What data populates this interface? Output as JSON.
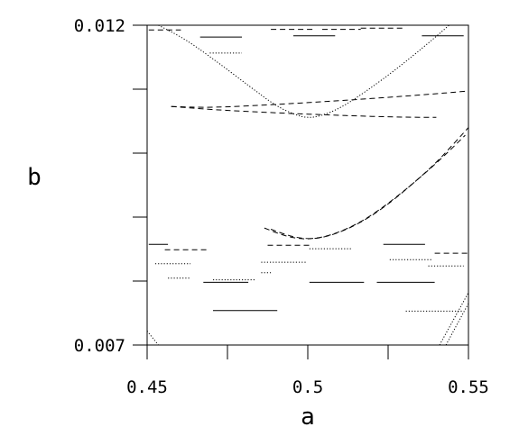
{
  "chart_data": {
    "type": "scatter",
    "title": "",
    "xlabel": "a",
    "ylabel": "b",
    "xlim": [
      0.45,
      0.55
    ],
    "ylim": [
      0.007,
      0.012
    ],
    "x_tick_labels": [
      "0.45",
      "0.5",
      "0.55"
    ],
    "y_tick_labels": [
      "0.007",
      "0.012"
    ],
    "x_minor_ticks": [
      0.475,
      0.525
    ],
    "y_minor_ticks": [
      0.008,
      0.009,
      0.01,
      0.011
    ],
    "grid": false,
    "legend": "none",
    "line_color": "#000000",
    "curves": [
      {
        "name": "",
        "style": "dotted",
        "x": [
          0.4535,
          0.462,
          0.472,
          0.482,
          0.49,
          0.496,
          0.5,
          0.504,
          0.51,
          0.518,
          0.528,
          0.538,
          0.544
        ],
        "y": [
          0.012,
          0.01178,
          0.01142,
          0.01104,
          0.01074,
          0.0106,
          0.01055,
          0.01058,
          0.0107,
          0.01096,
          0.01133,
          0.01174,
          0.012
        ]
      },
      {
        "name": "",
        "style": "dashed",
        "x": [
          0.4865,
          0.492,
          0.497,
          0.502,
          0.508,
          0.515,
          0.522,
          0.53,
          0.538,
          0.545,
          0.549
        ],
        "y": [
          0.00883,
          0.00872,
          0.00866,
          0.00866,
          0.00873,
          0.00888,
          0.0091,
          0.00941,
          0.00975,
          0.01008,
          0.01028
        ]
      },
      {
        "name": "",
        "style": "dashed",
        "x": [
          0.4885,
          0.494,
          0.499,
          0.504,
          0.51,
          0.517,
          0.524,
          0.532,
          0.54,
          0.546,
          0.55
        ],
        "y": [
          0.00881,
          0.00871,
          0.00866,
          0.00867,
          0.00876,
          0.00893,
          0.00916,
          0.00949,
          0.00985,
          0.01018,
          0.0104
        ]
      },
      {
        "name": "",
        "style": "dashed",
        "x": [
          0.4575,
          0.47,
          0.49,
          0.51,
          0.53,
          0.54,
          0.545,
          0.55
        ],
        "y": [
          0.01073,
          0.01071,
          0.01076,
          0.01082,
          0.01089,
          0.01093,
          0.01095,
          0.01097
        ]
      },
      {
        "name": "",
        "style": "dashed",
        "x": [
          0.4575,
          0.47,
          0.49,
          0.51,
          0.53,
          0.54
        ],
        "y": [
          0.01073,
          0.01068,
          0.01063,
          0.01059,
          0.01056,
          0.01056
        ]
      },
      {
        "name": "",
        "style": "dotted",
        "x": [
          0.541,
          0.55
        ],
        "y": [
          0.007,
          0.00782
        ]
      },
      {
        "name": "",
        "style": "dotted",
        "x": [
          0.543,
          0.55
        ],
        "y": [
          0.007,
          0.00765
        ]
      },
      {
        "name": "",
        "style": "dotted",
        "x": [
          0.45,
          0.4535
        ],
        "y": [
          0.00722,
          0.007
        ]
      }
    ],
    "segments": [
      {
        "x": [
          0.4505,
          0.4605
        ],
        "y": [
          0.011925,
          0.011925
        ],
        "style": "dashed"
      },
      {
        "x": [
          0.4665,
          0.4795
        ],
        "y": [
          0.011815,
          0.011815
        ],
        "style": "solid"
      },
      {
        "x": [
          0.4885,
          0.5015
        ],
        "y": [
          0.011935,
          0.011935
        ],
        "style": "dashed"
      },
      {
        "x": [
          0.5045,
          0.5165
        ],
        "y": [
          0.011935,
          0.011935
        ],
        "style": "dashed"
      },
      {
        "x": [
          0.4955,
          0.5085
        ],
        "y": [
          0.011835,
          0.011835
        ],
        "style": "solid"
      },
      {
        "x": [
          0.5165,
          0.5305
        ],
        "y": [
          0.011955,
          0.011955
        ],
        "style": "dashed"
      },
      {
        "x": [
          0.5355,
          0.5485
        ],
        "y": [
          0.011835,
          0.011835
        ],
        "style": "solid"
      },
      {
        "x": [
          0.4695,
          0.4795
        ],
        "y": [
          0.011565,
          0.011565
        ],
        "style": "dotted"
      },
      {
        "x": [
          0.4505,
          0.4565
        ],
        "y": [
          0.008575,
          0.008575
        ],
        "style": "solid"
      },
      {
        "x": [
          0.4555,
          0.4695
        ],
        "y": [
          0.00849,
          0.00849
        ],
        "style": "dashed"
      },
      {
        "x": [
          0.4875,
          0.5005
        ],
        "y": [
          0.00856,
          0.00856
        ],
        "style": "dashed"
      },
      {
        "x": [
          0.5005,
          0.5135
        ],
        "y": [
          0.008505,
          0.008505
        ],
        "style": "dotted"
      },
      {
        "x": [
          0.5235,
          0.5365
        ],
        "y": [
          0.008575,
          0.008575
        ],
        "style": "solid"
      },
      {
        "x": [
          0.5395,
          0.5505
        ],
        "y": [
          0.008435,
          0.008435
        ],
        "style": "dashed"
      },
      {
        "x": [
          0.4525,
          0.4635
        ],
        "y": [
          0.00827,
          0.00827
        ],
        "style": "dotted"
      },
      {
        "x": [
          0.4855,
          0.4995
        ],
        "y": [
          0.008295,
          0.008295
        ],
        "style": "dotted"
      },
      {
        "x": [
          0.5255,
          0.5385
        ],
        "y": [
          0.008335,
          0.008335
        ],
        "style": "dotted"
      },
      {
        "x": [
          0.5375,
          0.5485
        ],
        "y": [
          0.008235,
          0.008235
        ],
        "style": "dotted"
      },
      {
        "x": [
          0.4565,
          0.4635
        ],
        "y": [
          0.008045,
          0.008045
        ],
        "style": "dotted"
      },
      {
        "x": [
          0.4675,
          0.4815
        ],
        "y": [
          0.00798,
          0.00798
        ],
        "style": "solid"
      },
      {
        "x": [
          0.4855,
          0.4885
        ],
        "y": [
          0.00813,
          0.00813
        ],
        "style": "dotted"
      },
      {
        "x": [
          0.5005,
          0.5175
        ],
        "y": [
          0.00798,
          0.00798
        ],
        "style": "solid"
      },
      {
        "x": [
          0.5215,
          0.5395
        ],
        "y": [
          0.00798,
          0.00798
        ],
        "style": "solid"
      },
      {
        "x": [
          0.4705,
          0.4835
        ],
        "y": [
          0.00802,
          0.00802
        ],
        "style": "dotted"
      },
      {
        "x": [
          0.4705,
          0.4905
        ],
        "y": [
          0.00754,
          0.00754
        ],
        "style": "solid"
      },
      {
        "x": [
          0.5305,
          0.5485
        ],
        "y": [
          0.00753,
          0.00753
        ],
        "style": "dotted"
      }
    ]
  }
}
